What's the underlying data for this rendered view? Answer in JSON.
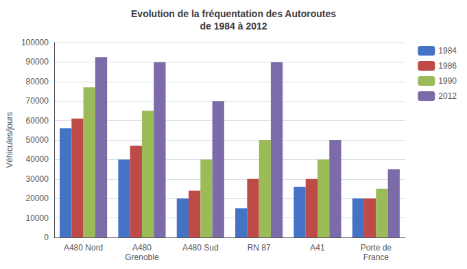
{
  "chart_data": {
    "type": "bar",
    "title": "Evolution de la fréquentation des Autoroutes\nde 1984 à 2012",
    "ylabel": "Véhicules/jours",
    "categories": [
      "A480 Nord",
      "A480\nGrenoble",
      "A480 Sud",
      "RN 87",
      "A41",
      "Porte de\nFrance"
    ],
    "series": [
      {
        "name": "1984",
        "color": "#4472C4",
        "values": [
          56000,
          40000,
          20000,
          15000,
          26000,
          20000
        ]
      },
      {
        "name": "1986",
        "color": "#BE4B48",
        "values": [
          61000,
          47000,
          24000,
          30000,
          30000,
          20000
        ]
      },
      {
        "name": "1990",
        "color": "#9BBB59",
        "values": [
          77000,
          65000,
          40000,
          50000,
          40000,
          25000
        ]
      },
      {
        "name": "2012",
        "color": "#7B6BA8",
        "values": [
          92500,
          90000,
          70000,
          90000,
          50000,
          35000
        ]
      }
    ],
    "ylim": [
      0,
      100000
    ],
    "yticks": [
      0,
      10000,
      20000,
      30000,
      40000,
      50000,
      60000,
      70000,
      80000,
      90000,
      100000
    ],
    "grid": true,
    "legend": "right"
  }
}
